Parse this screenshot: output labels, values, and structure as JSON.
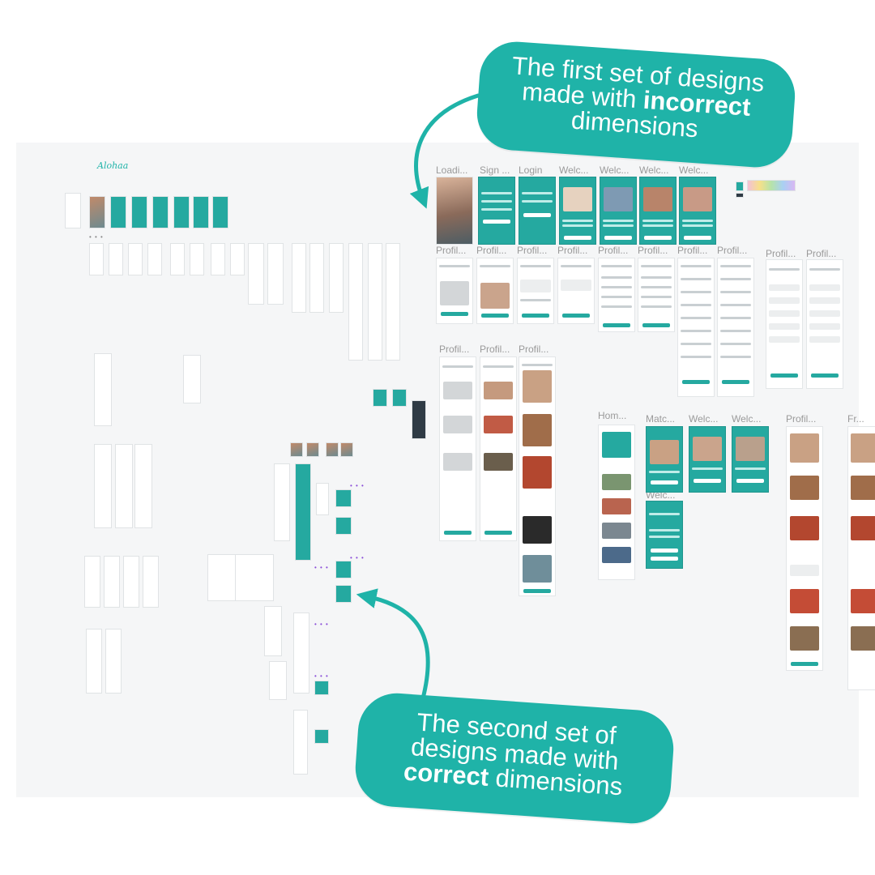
{
  "callouts": {
    "top": {
      "line1": "The first set of designs",
      "line2_pre": "made with ",
      "line2_bold": "incorrect",
      "line3": "dimensions"
    },
    "bottom": {
      "line1": "The second set of",
      "line2": "designs made with",
      "line3_bold": "correct",
      "line3_post": " dimensions"
    }
  },
  "canvas": {
    "brand": "Alohaa",
    "row1_labels": [
      "Loadi...",
      "Sign ...",
      "Login",
      "Welc...",
      "Welc...",
      "Welc...",
      "Welc..."
    ],
    "row2_labels": [
      "Profil...",
      "Profil...",
      "Profil...",
      "Profil...",
      "Profil...",
      "Profil...",
      "Profil...",
      "Profil...",
      "Profil...",
      "Profil..."
    ],
    "row3_labels": [
      "Profil...",
      "Profil...",
      "Profil..."
    ],
    "row4_labels": [
      "Hom...",
      "Matc...",
      "Welc...",
      "Welc...",
      "Profil...",
      "Fr..."
    ],
    "row5_labels": [
      "Welc..."
    ]
  },
  "colors": {
    "accent": "#1fb3a8",
    "screen_teal": "#25a9a0",
    "canvas_bg": "#f5f6f7",
    "label_gray": "#9a9a9a"
  },
  "icons": [
    "curved-arrow-icon",
    "curved-arrow-icon"
  ]
}
